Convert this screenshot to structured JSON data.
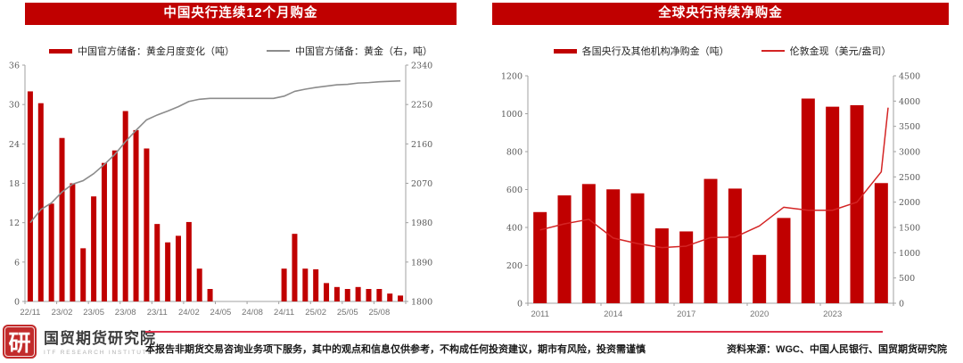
{
  "chart_data": [
    {
      "type": "bar+line",
      "title": "中国央行连续12个月购金",
      "legend_bar": "中国官方储备：黄金月度变化（吨）",
      "legend_line": "中国官方储备：黄金（右，吨）",
      "bar_color": "#c00000",
      "line_color": "#8c8c8c",
      "left_axis": {
        "min": 0,
        "max": 36,
        "ticks": [
          0,
          6,
          12,
          18,
          24,
          30,
          36
        ]
      },
      "right_axis": {
        "min": 1800,
        "max": 2340,
        "ticks": [
          1800,
          1890,
          1980,
          2070,
          2160,
          2250,
          2340
        ]
      },
      "categories": [
        "22/11",
        "22/12",
        "23/01",
        "23/02",
        "23/03",
        "23/04",
        "23/05",
        "23/06",
        "23/07",
        "23/08",
        "23/09",
        "23/10",
        "23/11",
        "23/12",
        "24/01",
        "24/02",
        "24/03",
        "24/04",
        "24/05",
        "24/06",
        "24/07",
        "24/08",
        "24/09",
        "24/10",
        "24/11",
        "24/12",
        "25/01",
        "25/02",
        "25/03",
        "25/04",
        "25/05",
        "25/06",
        "25/07",
        "25/08",
        "25/09",
        "25/10"
      ],
      "x_tick_indices": [
        0,
        3,
        6,
        9,
        12,
        15,
        18,
        21,
        24,
        27,
        30,
        33
      ],
      "x_tick_labels": [
        "22/11",
        "23/02",
        "23/05",
        "23/08",
        "23/11",
        "24/02",
        "24/05",
        "24/08",
        "24/11",
        "25/02",
        "25/05",
        "25/08"
      ],
      "bar_values": [
        32,
        30.2,
        14.9,
        24.9,
        18,
        8.1,
        16,
        21.1,
        23,
        29,
        26.1,
        23.3,
        11.8,
        9,
        10,
        12.1,
        5,
        1.9,
        0,
        0,
        0,
        0,
        0,
        0,
        5,
        10.3,
        5,
        4.9,
        2.8,
        2.2,
        1.9,
        2.2,
        1.9,
        1.9,
        1.2,
        0.9
      ],
      "line_values": [
        1980,
        2010,
        2025,
        2050,
        2068,
        2076,
        2092,
        2113,
        2136,
        2165,
        2191,
        2215,
        2226,
        2235,
        2245,
        2257,
        2262,
        2264,
        2264,
        2264,
        2264,
        2264,
        2264,
        2264,
        2269,
        2280,
        2285,
        2289,
        2292,
        2295,
        2296,
        2299,
        2300,
        2302,
        2303,
        2304
      ]
    },
    {
      "type": "bar+line",
      "title": "全球央行持续净购金",
      "legend_bar": "各国央行及其他机构净购金（吨）",
      "legend_line": "伦敦金现（美元/盎司）",
      "bar_color": "#c00000",
      "line_color": "#d42424",
      "left_axis": {
        "min": 0,
        "max": 1200,
        "ticks": [
          0,
          200,
          400,
          600,
          800,
          1000,
          1200
        ]
      },
      "right_axis": {
        "min": 0,
        "max": 4500,
        "ticks": [
          0,
          500,
          1000,
          1500,
          2000,
          2500,
          3000,
          3500,
          4000,
          4500
        ]
      },
      "categories": [
        "2011",
        "2012",
        "2013",
        "2014",
        "2015",
        "2016",
        "2017",
        "2018",
        "2019",
        "2020",
        "2021",
        "2022",
        "2023",
        "2024",
        "2025"
      ],
      "x_tick_indices": [
        0,
        3,
        6,
        9,
        12
      ],
      "x_tick_labels": [
        "2011",
        "2014",
        "2017",
        "2020",
        "2023"
      ],
      "bar_values": [
        481,
        569,
        629,
        601,
        580,
        395,
        379,
        656,
        605,
        255,
        450,
        1080,
        1037,
        1045,
        634
      ],
      "line_values": [
        1450,
        1570,
        1660,
        1290,
        1180,
        1100,
        1130,
        1300,
        1310,
        1530,
        1900,
        1840,
        1840,
        2000,
        2600
      ],
      "line_extension_value": 3870
    }
  ],
  "footer": {
    "logo_char": "研",
    "company": "国贸期货研究院",
    "company_en": "ITF RESEARCH INSTITUTE",
    "disclaimer": "本报告非期货交易咨询业务项下服务，其中的观点和信息仅供参考，不构成任何投资建议，期市有风险，投资需谨慎",
    "source": "资料来源：WGC、中国人民银行、国贸期货研究院"
  },
  "colors": {
    "banner_red": "#c00000",
    "axis_line": "#a0a0a0",
    "divider_red": "#e0314b"
  }
}
